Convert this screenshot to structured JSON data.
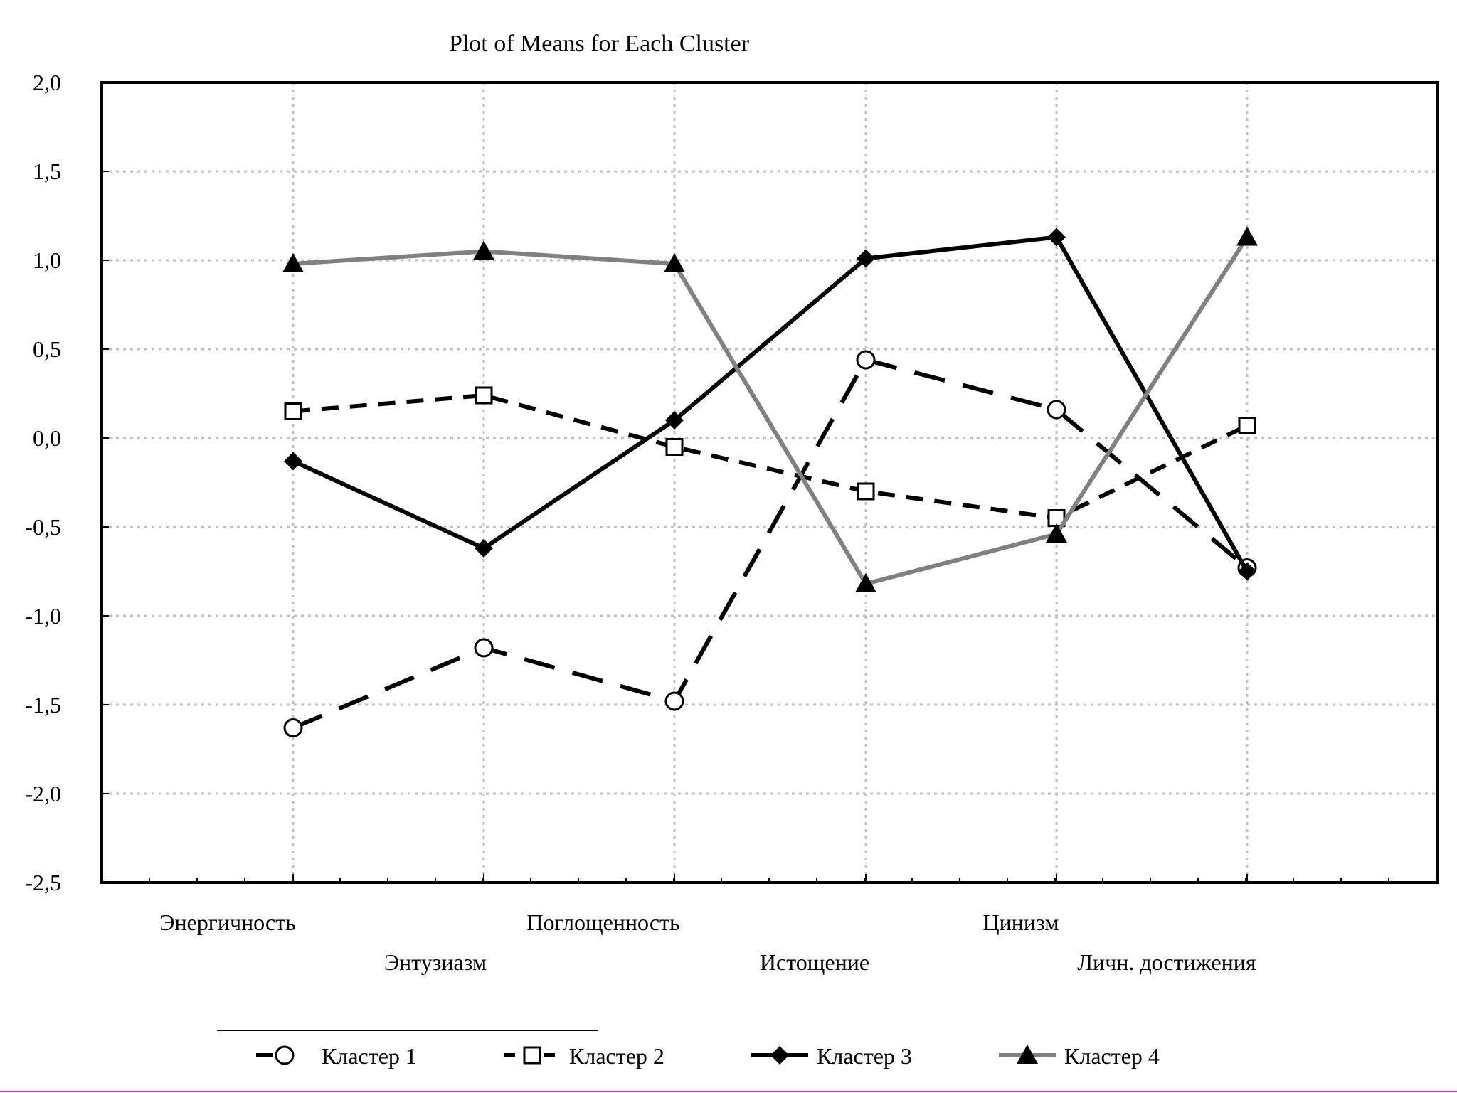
{
  "chart_data": {
    "type": "line",
    "title": "Plot of Means for Each Cluster",
    "xlabel": "",
    "ylabel": "",
    "categories": [
      "Энергичность",
      "Энтузиазм",
      "Поглощенность",
      "Истощение",
      "Цинизм",
      "Личн. достижения"
    ],
    "ylim": [
      -2.5,
      2.0
    ],
    "yticks": [
      "2,0",
      "1,5",
      "1,0",
      "0,5",
      "0,0",
      "-0,5",
      "-1,0",
      "-1,5",
      "-2,0",
      "-2,5"
    ],
    "yticks_values": [
      2.0,
      1.5,
      1.0,
      0.5,
      0.0,
      -0.5,
      -1.0,
      -1.5,
      -2.0,
      -2.5
    ],
    "grid": true,
    "legend_position": "bottom",
    "series": [
      {
        "name": "Кластер 1",
        "marker": "circle-open",
        "line": "dashed",
        "color": "#000000",
        "values": [
          -1.63,
          -1.18,
          -1.48,
          0.44,
          0.16,
          -0.73
        ]
      },
      {
        "name": "Кластер 2",
        "marker": "square-open",
        "line": "dashed-short",
        "color": "#000000",
        "values": [
          0.15,
          0.24,
          -0.05,
          -0.3,
          -0.45,
          0.07
        ]
      },
      {
        "name": "Кластер 3",
        "marker": "diamond-filled",
        "line": "solid",
        "color": "#000000",
        "values": [
          -0.13,
          -0.62,
          0.1,
          1.01,
          1.13,
          -0.75
        ]
      },
      {
        "name": "Кластер 4",
        "marker": "triangle-filled",
        "line": "solid",
        "color": "#808080",
        "values": [
          0.98,
          1.05,
          0.98,
          -0.82,
          -0.54,
          1.13
        ]
      }
    ]
  }
}
